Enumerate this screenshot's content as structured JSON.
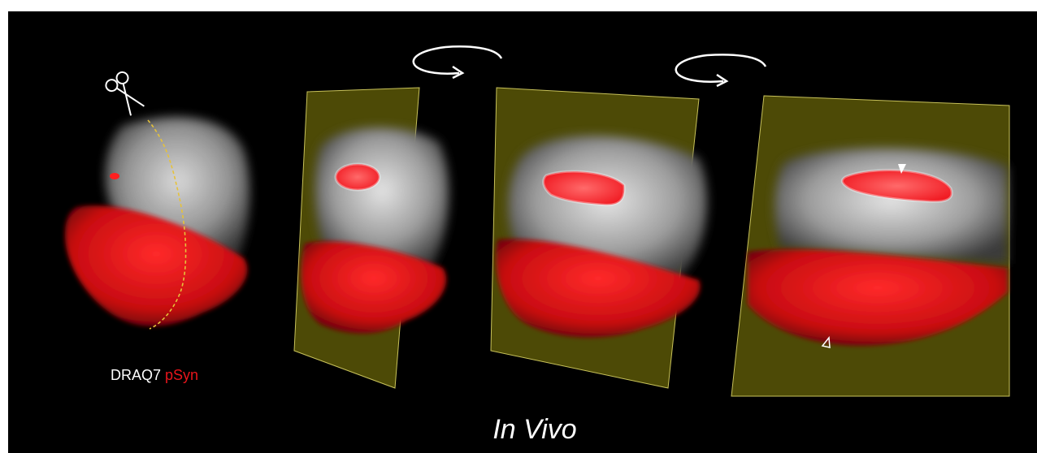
{
  "figure": {
    "legend": {
      "label_white": "DRAQ7",
      "label_red": "pSyn"
    },
    "caption": "In Vivo",
    "colors": {
      "background": "#000000",
      "nucleus_gray": "#bdbdbd",
      "psyn_red": "#e8151b",
      "slice_plane": "#4d4a06",
      "cut_line": "#e6c23a"
    },
    "icons": [
      "scissors-icon",
      "rotate-arrow-icon",
      "arrowhead-filled-icon",
      "arrowhead-outline-icon"
    ]
  }
}
